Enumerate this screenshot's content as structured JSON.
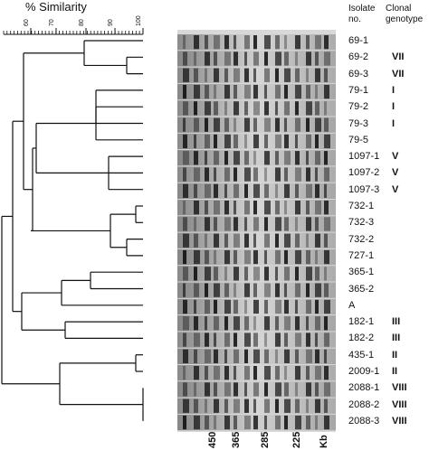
{
  "figure": {
    "similarity_axis_label": "% Similarity",
    "scale_ticks": [
      "60",
      "70",
      "80",
      "90",
      "100"
    ],
    "column_headers": {
      "isolate": "Isolate\nno.",
      "genotype": "Clonal\ngenotype"
    },
    "isolates": [
      {
        "name": "69-1",
        "genotype": ""
      },
      {
        "name": "69-2",
        "genotype": "VII"
      },
      {
        "name": "69-3",
        "genotype": "VII"
      },
      {
        "name": "79-1",
        "genotype": "I"
      },
      {
        "name": "79-2",
        "genotype": "I"
      },
      {
        "name": "79-3",
        "genotype": "I"
      },
      {
        "name": "79-5",
        "genotype": ""
      },
      {
        "name": "1097-1",
        "genotype": "V"
      },
      {
        "name": "1097-2",
        "genotype": "V"
      },
      {
        "name": "1097-3",
        "genotype": "V"
      },
      {
        "name": "732-1",
        "genotype": ""
      },
      {
        "name": "732-3",
        "genotype": ""
      },
      {
        "name": "732-2",
        "genotype": ""
      },
      {
        "name": "727-1",
        "genotype": ""
      },
      {
        "name": "365-1",
        "genotype": ""
      },
      {
        "name": "365-2",
        "genotype": ""
      },
      {
        "name": "A",
        "genotype": ""
      },
      {
        "name": "182-1",
        "genotype": "III"
      },
      {
        "name": "182-2",
        "genotype": "III"
      },
      {
        "name": "435-1",
        "genotype": "II"
      },
      {
        "name": "2009-1",
        "genotype": "II"
      },
      {
        "name": "2088-1",
        "genotype": "VIII"
      },
      {
        "name": "2088-2",
        "genotype": "VIII"
      },
      {
        "name": "2088-3",
        "genotype": "VIII"
      }
    ],
    "size_markers": [
      "450",
      "365",
      "285",
      "225",
      "Kb"
    ],
    "colors": {
      "line": "#111111",
      "gel_background": "#d8d8d8",
      "band_dark": "#1a1a1a"
    }
  }
}
